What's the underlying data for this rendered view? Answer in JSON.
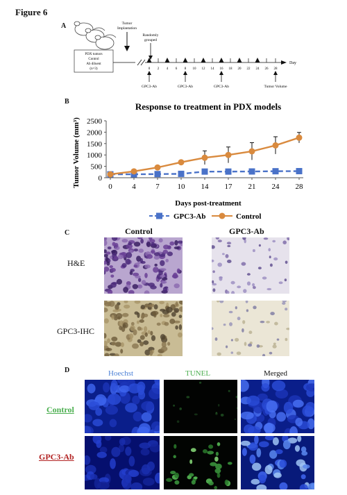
{
  "figure": {
    "title": "Figure 6",
    "panels": {
      "a": "A",
      "b": "B",
      "c": "C",
      "d": "D"
    }
  },
  "timeline": {
    "tumor_label_1": "Tumor",
    "tumor_label_2": "Implantation",
    "random_label_1": "Randomly",
    "random_label_2": "grouped",
    "box_lines": [
      "PDX tumors",
      "Control",
      "Ab diluent",
      "(n=3)"
    ],
    "axis_unit": "Day",
    "days": [
      "0",
      "2",
      "4",
      "6",
      "8",
      "10",
      "12",
      "14",
      "16",
      "18",
      "20",
      "22",
      "24",
      "26",
      "28"
    ],
    "dose_label": "GPC3-Ab",
    "endpoint_label": "Tumor Volume"
  },
  "chart_data": {
    "type": "line",
    "title": "Response to treatment in PDX models",
    "xlabel": "Days post-treatment",
    "ylabel": "Tumor Volume  (mm³)",
    "x": [
      0,
      4,
      7,
      10,
      14,
      17,
      21,
      24,
      28
    ],
    "ylim": [
      0,
      2500
    ],
    "yticks": [
      0,
      500,
      1000,
      1500,
      2000,
      2500
    ],
    "series": [
      {
        "name": "GPC3-Ab",
        "color": "#4a72c8",
        "marker": "square",
        "dashed": true,
        "values": [
          150,
          150,
          160,
          170,
          270,
          270,
          275,
          285,
          290
        ],
        "errors": [
          20,
          20,
          25,
          30,
          60,
          60,
          60,
          60,
          60
        ]
      },
      {
        "name": "Control",
        "color": "#d98a3e",
        "marker": "circle",
        "dashed": false,
        "values": [
          150,
          280,
          450,
          680,
          880,
          1000,
          1160,
          1420,
          1760
        ],
        "errors": [
          20,
          30,
          40,
          60,
          300,
          350,
          380,
          380,
          230
        ]
      }
    ],
    "legend_position": "bottom"
  },
  "histology": {
    "col_labels": [
      "Control",
      "GPC3-Ab"
    ],
    "row_labels": [
      "H&E",
      "GPC3-IHC"
    ]
  },
  "fluorescence": {
    "col_labels": [
      "Hoechst",
      "TUNEL",
      "Merged"
    ],
    "row_labels": [
      "Control",
      "GPC3-Ab"
    ],
    "colors": {
      "hoechst": "#4a7fd6",
      "tunel": "#4caf50",
      "control_row": "#4caf50",
      "gpc3_row": "#b22222"
    }
  }
}
